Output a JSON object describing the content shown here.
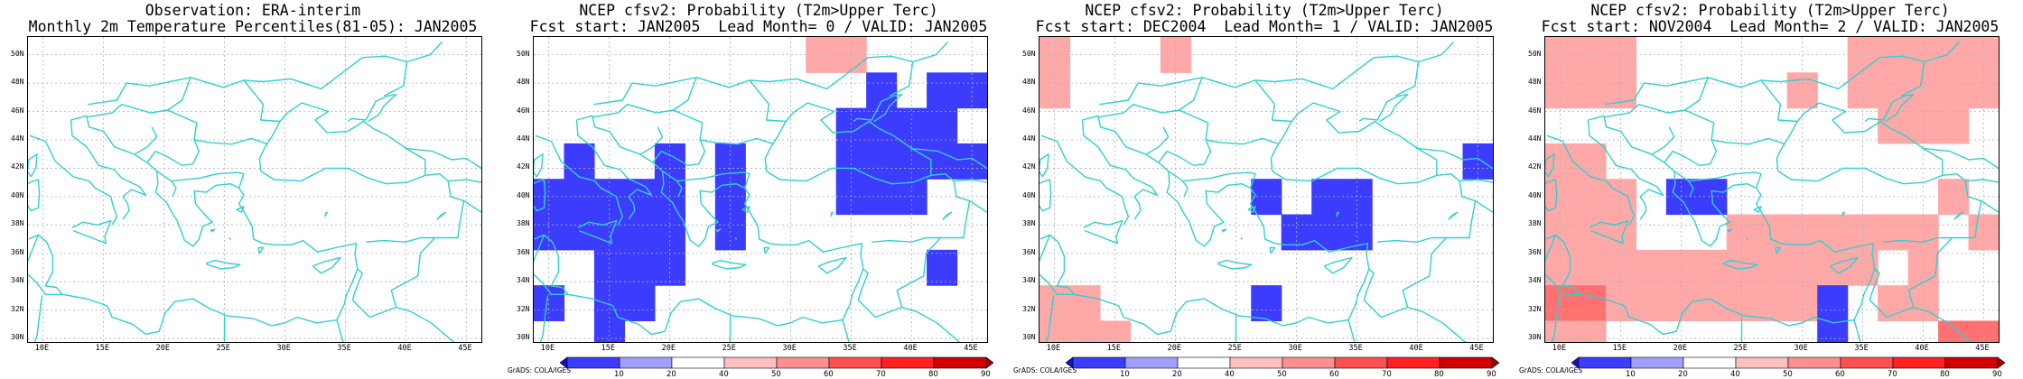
{
  "panels": [
    {
      "title_line1": "Observation: ERA-interim",
      "title_line2": "Monthly 2m Temperature Percentiles(81-05): JAN2005",
      "has_colorbar": false,
      "credit": "",
      "cells": []
    },
    {
      "title_line1": "NCEP cfsv2: Probability (T2m>Upper Terc)",
      "title_line2": "Fcst start: JAN2005  Lead Month= 0 / VALID: JAN2005",
      "has_colorbar": true,
      "credit": "GrADS: COLA/IGES",
      "cells": [
        {
          "lon": 32.5,
          "lat": 50.0,
          "cat": "pink_light"
        },
        {
          "lon": 35.0,
          "lat": 50.0,
          "cat": "pink_light"
        },
        {
          "lon": 37.5,
          "lat": 47.5,
          "cat": "blue"
        },
        {
          "lon": 42.5,
          "lat": 47.5,
          "cat": "blue"
        },
        {
          "lon": 45.0,
          "lat": 47.5,
          "cat": "blue"
        },
        {
          "lon": 35.0,
          "lat": 45.0,
          "cat": "blue"
        },
        {
          "lon": 37.5,
          "lat": 45.0,
          "cat": "blue"
        },
        {
          "lon": 40.0,
          "lat": 45.0,
          "cat": "blue"
        },
        {
          "lon": 42.5,
          "lat": 45.0,
          "cat": "blue"
        },
        {
          "lon": 12.5,
          "lat": 42.5,
          "cat": "blue"
        },
        {
          "lon": 20.0,
          "lat": 42.5,
          "cat": "blue"
        },
        {
          "lon": 25.0,
          "lat": 42.5,
          "cat": "blue"
        },
        {
          "lon": 35.0,
          "lat": 42.5,
          "cat": "blue"
        },
        {
          "lon": 37.5,
          "lat": 42.5,
          "cat": "blue"
        },
        {
          "lon": 40.0,
          "lat": 42.5,
          "cat": "blue"
        },
        {
          "lon": 42.5,
          "lat": 42.5,
          "cat": "blue"
        },
        {
          "lon": 45.0,
          "lat": 42.5,
          "cat": "blue"
        },
        {
          "lon": 10.0,
          "lat": 40.0,
          "cat": "blue"
        },
        {
          "lon": 12.5,
          "lat": 40.0,
          "cat": "blue"
        },
        {
          "lon": 15.0,
          "lat": 40.0,
          "cat": "blue"
        },
        {
          "lon": 17.5,
          "lat": 40.0,
          "cat": "blue"
        },
        {
          "lon": 20.0,
          "lat": 40.0,
          "cat": "blue"
        },
        {
          "lon": 25.0,
          "lat": 40.0,
          "cat": "blue"
        },
        {
          "lon": 35.0,
          "lat": 40.0,
          "cat": "blue"
        },
        {
          "lon": 37.5,
          "lat": 40.0,
          "cat": "blue"
        },
        {
          "lon": 40.0,
          "lat": 40.0,
          "cat": "blue"
        },
        {
          "lon": 10.0,
          "lat": 37.5,
          "cat": "blue"
        },
        {
          "lon": 12.5,
          "lat": 37.5,
          "cat": "blue"
        },
        {
          "lon": 15.0,
          "lat": 37.5,
          "cat": "blue"
        },
        {
          "lon": 17.5,
          "lat": 37.5,
          "cat": "blue"
        },
        {
          "lon": 20.0,
          "lat": 37.5,
          "cat": "blue"
        },
        {
          "lon": 25.0,
          "lat": 37.5,
          "cat": "blue"
        },
        {
          "lon": 15.0,
          "lat": 35.0,
          "cat": "blue"
        },
        {
          "lon": 17.5,
          "lat": 35.0,
          "cat": "blue"
        },
        {
          "lon": 20.0,
          "lat": 35.0,
          "cat": "blue"
        },
        {
          "lon": 42.5,
          "lat": 35.0,
          "cat": "blue"
        },
        {
          "lon": 15.0,
          "lat": 32.5,
          "cat": "blue"
        },
        {
          "lon": 17.5,
          "lat": 32.5,
          "cat": "blue"
        },
        {
          "lon": 10.0,
          "lat": 32.5,
          "cat": "blue"
        },
        {
          "lon": 15.0,
          "lat": 30.0,
          "cat": "blue"
        }
      ]
    },
    {
      "title_line1": "NCEP cfsv2: Probability (T2m>Upper Terc)",
      "title_line2": "Fcst start: DEC2004  Lead Month= 1 / VALID: JAN2005",
      "has_colorbar": true,
      "credit": "GrADS: COLA/IGES",
      "cells": [
        {
          "lon": 10.0,
          "lat": 50.0,
          "cat": "pink_light"
        },
        {
          "lon": 20.0,
          "lat": 50.0,
          "cat": "pink_light"
        },
        {
          "lon": 10.0,
          "lat": 47.5,
          "cat": "pink_light"
        },
        {
          "lon": 45.0,
          "lat": 42.5,
          "cat": "blue"
        },
        {
          "lon": 27.5,
          "lat": 40.0,
          "cat": "blue"
        },
        {
          "lon": 32.5,
          "lat": 40.0,
          "cat": "blue"
        },
        {
          "lon": 35.0,
          "lat": 40.0,
          "cat": "blue"
        },
        {
          "lon": 30.0,
          "lat": 37.5,
          "cat": "blue"
        },
        {
          "lon": 32.5,
          "lat": 37.5,
          "cat": "blue"
        },
        {
          "lon": 35.0,
          "lat": 37.5,
          "cat": "blue"
        },
        {
          "lon": 10.0,
          "lat": 32.5,
          "cat": "pink_light"
        },
        {
          "lon": 12.5,
          "lat": 32.5,
          "cat": "pink_light"
        },
        {
          "lon": 27.5,
          "lat": 32.5,
          "cat": "blue"
        },
        {
          "lon": 10.0,
          "lat": 30.0,
          "cat": "pink_light"
        },
        {
          "lon": 12.5,
          "lat": 30.0,
          "cat": "pink_light"
        },
        {
          "lon": 15.0,
          "lat": 30.0,
          "cat": "pink_light"
        }
      ]
    },
    {
      "title_line1": "NCEP cfsv2: Probability (T2m>Upper Terc)",
      "title_line2": "Fcst start: NOV2004  Lead Month= 2 / VALID: JAN2005",
      "has_colorbar": true,
      "credit": "GrADS: COLA/IGES",
      "cells": [
        {
          "lon": 10.0,
          "lat": 50.0,
          "cat": "pink_light"
        },
        {
          "lon": 12.5,
          "lat": 50.0,
          "cat": "pink_light"
        },
        {
          "lon": 15.0,
          "lat": 50.0,
          "cat": "pink_light"
        },
        {
          "lon": 35.0,
          "lat": 50.0,
          "cat": "pink_light"
        },
        {
          "lon": 37.5,
          "lat": 50.0,
          "cat": "pink_light"
        },
        {
          "lon": 40.0,
          "lat": 50.0,
          "cat": "pink_light"
        },
        {
          "lon": 42.5,
          "lat": 50.0,
          "cat": "pink_light"
        },
        {
          "lon": 45.0,
          "lat": 50.0,
          "cat": "pink_light"
        },
        {
          "lon": 10.0,
          "lat": 47.5,
          "cat": "pink_light"
        },
        {
          "lon": 12.5,
          "lat": 47.5,
          "cat": "pink_light"
        },
        {
          "lon": 15.0,
          "lat": 47.5,
          "cat": "pink_light"
        },
        {
          "lon": 30.0,
          "lat": 47.5,
          "cat": "pink_light"
        },
        {
          "lon": 35.0,
          "lat": 47.5,
          "cat": "pink_light"
        },
        {
          "lon": 37.5,
          "lat": 47.5,
          "cat": "pink_light"
        },
        {
          "lon": 40.0,
          "lat": 47.5,
          "cat": "pink_light"
        },
        {
          "lon": 42.5,
          "lat": 47.5,
          "cat": "pink_light"
        },
        {
          "lon": 45.0,
          "lat": 47.5,
          "cat": "pink_light"
        },
        {
          "lon": 37.5,
          "lat": 45.0,
          "cat": "pink_light"
        },
        {
          "lon": 40.0,
          "lat": 45.0,
          "cat": "pink_light"
        },
        {
          "lon": 42.5,
          "lat": 45.0,
          "cat": "pink_light"
        },
        {
          "lon": 10.0,
          "lat": 42.5,
          "cat": "pink_light"
        },
        {
          "lon": 12.5,
          "lat": 42.5,
          "cat": "pink_light"
        },
        {
          "lon": 10.0,
          "lat": 40.0,
          "cat": "pink_light"
        },
        {
          "lon": 12.5,
          "lat": 40.0,
          "cat": "pink_light"
        },
        {
          "lon": 15.0,
          "lat": 40.0,
          "cat": "pink_light"
        },
        {
          "lon": 20.0,
          "lat": 40.0,
          "cat": "blue"
        },
        {
          "lon": 22.5,
          "lat": 40.0,
          "cat": "blue"
        },
        {
          "lon": 42.5,
          "lat": 40.0,
          "cat": "pink_light"
        },
        {
          "lon": 10.0,
          "lat": 37.5,
          "cat": "pink_light"
        },
        {
          "lon": 12.5,
          "lat": 37.5,
          "cat": "pink_light"
        },
        {
          "lon": 15.0,
          "lat": 37.5,
          "cat": "pink_light"
        },
        {
          "lon": 25.0,
          "lat": 37.5,
          "cat": "pink_light"
        },
        {
          "lon": 27.5,
          "lat": 37.5,
          "cat": "pink_light"
        },
        {
          "lon": 30.0,
          "lat": 37.5,
          "cat": "pink_light"
        },
        {
          "lon": 32.5,
          "lat": 37.5,
          "cat": "pink_light"
        },
        {
          "lon": 35.0,
          "lat": 37.5,
          "cat": "pink_light"
        },
        {
          "lon": 37.5,
          "lat": 37.5,
          "cat": "pink_light"
        },
        {
          "lon": 40.0,
          "lat": 37.5,
          "cat": "pink_light"
        },
        {
          "lon": 45.0,
          "lat": 37.5,
          "cat": "pink_light"
        },
        {
          "lon": 10.0,
          "lat": 35.0,
          "cat": "pink_light"
        },
        {
          "lon": 12.5,
          "lat": 35.0,
          "cat": "pink_light"
        },
        {
          "lon": 15.0,
          "lat": 35.0,
          "cat": "pink_light"
        },
        {
          "lon": 17.5,
          "lat": 35.0,
          "cat": "pink_light"
        },
        {
          "lon": 20.0,
          "lat": 35.0,
          "cat": "pink_light"
        },
        {
          "lon": 22.5,
          "lat": 35.0,
          "cat": "pink_light"
        },
        {
          "lon": 25.0,
          "lat": 35.0,
          "cat": "pink_light"
        },
        {
          "lon": 27.5,
          "lat": 35.0,
          "cat": "pink_light"
        },
        {
          "lon": 30.0,
          "lat": 35.0,
          "cat": "pink_light"
        },
        {
          "lon": 32.5,
          "lat": 35.0,
          "cat": "pink_light"
        },
        {
          "lon": 35.0,
          "lat": 35.0,
          "cat": "pink_light"
        },
        {
          "lon": 40.0,
          "lat": 35.0,
          "cat": "pink_light"
        },
        {
          "lon": 10.0,
          "lat": 32.5,
          "cat": "pink_mid"
        },
        {
          "lon": 12.5,
          "lat": 32.5,
          "cat": "pink_mid"
        },
        {
          "lon": 15.0,
          "lat": 32.5,
          "cat": "pink_light"
        },
        {
          "lon": 17.5,
          "lat": 32.5,
          "cat": "pink_light"
        },
        {
          "lon": 20.0,
          "lat": 32.5,
          "cat": "pink_light"
        },
        {
          "lon": 22.5,
          "lat": 32.5,
          "cat": "pink_light"
        },
        {
          "lon": 25.0,
          "lat": 32.5,
          "cat": "pink_light"
        },
        {
          "lon": 27.5,
          "lat": 32.5,
          "cat": "pink_light"
        },
        {
          "lon": 30.0,
          "lat": 32.5,
          "cat": "pink_light"
        },
        {
          "lon": 32.5,
          "lat": 32.5,
          "cat": "blue"
        },
        {
          "lon": 37.5,
          "lat": 32.5,
          "cat": "pink_light"
        },
        {
          "lon": 40.0,
          "lat": 32.5,
          "cat": "pink_light"
        },
        {
          "lon": 10.0,
          "lat": 30.0,
          "cat": "pink_light"
        },
        {
          "lon": 12.5,
          "lat": 30.0,
          "cat": "pink_light"
        },
        {
          "lon": 32.5,
          "lat": 30.0,
          "cat": "blue"
        },
        {
          "lon": 42.5,
          "lat": 30.0,
          "cat": "pink_mid"
        },
        {
          "lon": 45.0,
          "lat": 30.0,
          "cat": "pink_mid"
        }
      ]
    }
  ],
  "axes": {
    "lon_ticks": [
      "10E",
      "15E",
      "20E",
      "25E",
      "30E",
      "35E",
      "40E",
      "45E"
    ],
    "lat_ticks": [
      "30N",
      "32N",
      "34N",
      "36N",
      "38N",
      "40N",
      "42N",
      "44N",
      "46N",
      "48N",
      "50N"
    ],
    "lon_range": [
      8.75,
      46.25
    ],
    "lat_range": [
      29.75,
      51.25
    ]
  },
  "colors": {
    "blue": "#3c3cff",
    "pink_light": "#ffa8a8",
    "pink_mid": "#ff7070",
    "coast": "#30d0d0",
    "grid": "#b0b0b0"
  },
  "colorbar": {
    "labels": [
      "10",
      "20",
      "40",
      "50",
      "60",
      "70",
      "80",
      "90"
    ],
    "segments": [
      "#1010d0",
      "#3c3cff",
      "#a0a0ff",
      "#ffffff",
      "#ffc0c0",
      "#ff9090",
      "#ff5050",
      "#ff2020",
      "#d00000",
      "#a00000"
    ]
  }
}
